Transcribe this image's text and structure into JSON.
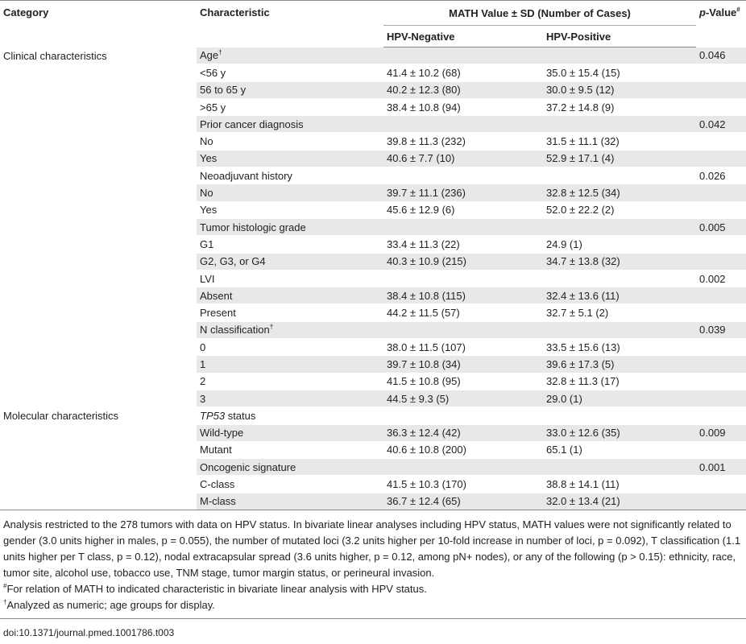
{
  "header": {
    "category": "Category",
    "characteristic": "Characteristic",
    "math": "MATH Value ± SD (Number of Cases)",
    "hpv_neg": "HPV-Negative",
    "hpv_pos": "HPV-Positive",
    "pvalue_p": "p",
    "pvalue_rest": "-Value",
    "pvalue_mark": "#"
  },
  "rows": [
    {
      "category": "Clinical characteristics",
      "characteristic": "Age",
      "mark": "†",
      "neg": "",
      "pos": "",
      "p": "0.046"
    },
    {
      "category": "",
      "characteristic": "<56 y",
      "mark": "",
      "neg": "41.4 ± 10.2 (68)",
      "pos": "35.0 ± 15.4 (15)",
      "p": ""
    },
    {
      "category": "",
      "characteristic": "56 to 65 y",
      "mark": "",
      "neg": "40.2 ± 12.3 (80)",
      "pos": "30.0 ± 9.5 (12)",
      "p": ""
    },
    {
      "category": "",
      "characteristic": ">65 y",
      "mark": "",
      "neg": "38.4 ± 10.8 (94)",
      "pos": "37.2 ± 14.8 (9)",
      "p": ""
    },
    {
      "category": "",
      "characteristic": "Prior cancer diagnosis",
      "mark": "",
      "neg": "",
      "pos": "",
      "p": "0.042"
    },
    {
      "category": "",
      "characteristic": "No",
      "mark": "",
      "neg": "39.8 ± 11.3 (232)",
      "pos": "31.5 ± 11.1 (32)",
      "p": ""
    },
    {
      "category": "",
      "characteristic": "Yes",
      "mark": "",
      "neg": "40.6 ± 7.7 (10)",
      "pos": "52.9 ± 17.1 (4)",
      "p": ""
    },
    {
      "category": "",
      "characteristic": "Neoadjuvant history",
      "mark": "",
      "neg": "",
      "pos": "",
      "p": "0.026"
    },
    {
      "category": "",
      "characteristic": "No",
      "mark": "",
      "neg": "39.7 ± 11.1 (236)",
      "pos": "32.8 ± 12.5 (34)",
      "p": ""
    },
    {
      "category": "",
      "characteristic": "Yes",
      "mark": "",
      "neg": "45.6 ± 12.9 (6)",
      "pos": "52.0 ± 22.2 (2)",
      "p": ""
    },
    {
      "category": "",
      "characteristic": "Tumor histologic grade",
      "mark": "",
      "neg": "",
      "pos": "",
      "p": "0.005"
    },
    {
      "category": "",
      "characteristic": "G1",
      "mark": "",
      "neg": "33.4 ± 11.3 (22)",
      "pos": "24.9 (1)",
      "p": ""
    },
    {
      "category": "",
      "characteristic": "G2, G3, or G4",
      "mark": "",
      "neg": "40.3 ± 10.9 (215)",
      "pos": "34.7 ± 13.8 (32)",
      "p": ""
    },
    {
      "category": "",
      "characteristic": "LVI",
      "mark": "",
      "neg": "",
      "pos": "",
      "p": "0.002"
    },
    {
      "category": "",
      "characteristic": "Absent",
      "mark": "",
      "neg": "38.4 ± 10.8 (115)",
      "pos": "32.4 ± 13.6 (11)",
      "p": ""
    },
    {
      "category": "",
      "characteristic": "Present",
      "mark": "",
      "neg": "44.2 ± 11.5 (57)",
      "pos": "32.7 ± 5.1 (2)",
      "p": ""
    },
    {
      "category": "",
      "characteristic": "N classification",
      "mark": "†",
      "neg": "",
      "pos": "",
      "p": "0.039"
    },
    {
      "category": "",
      "characteristic": "0",
      "mark": "",
      "neg": "38.0 ± 11.5 (107)",
      "pos": "33.5 ± 15.6 (13)",
      "p": ""
    },
    {
      "category": "",
      "characteristic": "1",
      "mark": "",
      "neg": "39.7 ± 10.8 (34)",
      "pos": "39.6 ± 17.3 (5)",
      "p": ""
    },
    {
      "category": "",
      "characteristic": "2",
      "mark": "",
      "neg": "41.5 ± 10.8 (95)",
      "pos": "32.8 ± 11.3 (17)",
      "p": ""
    },
    {
      "category": "",
      "characteristic": "3",
      "mark": "",
      "neg": "44.5 ± 9.3 (5)",
      "pos": "29.0 (1)",
      "p": ""
    },
    {
      "category": "Molecular characteristics",
      "characteristic": "TP53",
      "char_suffix": " status",
      "mark": "",
      "neg": "",
      "pos": "",
      "p": ""
    },
    {
      "category": "",
      "characteristic": "Wild-type",
      "mark": "",
      "neg": "36.3 ± 12.4 (42)",
      "pos": "33.0 ± 12.6 (35)",
      "p": "0.009"
    },
    {
      "category": "",
      "characteristic": "Mutant",
      "mark": "",
      "neg": "40.6 ± 10.8 (200)",
      "pos": "65.1 (1)",
      "p": ""
    },
    {
      "category": "",
      "characteristic": "Oncogenic signature",
      "mark": "",
      "neg": "",
      "pos": "",
      "p": "0.001"
    },
    {
      "category": "",
      "characteristic": "C-class",
      "mark": "",
      "neg": "41.5 ± 10.3 (170)",
      "pos": "38.8 ± 14.1 (11)",
      "p": ""
    },
    {
      "category": "",
      "characteristic": "M-class",
      "mark": "",
      "neg": "36.7 ± 12.4 (65)",
      "pos": "32.0 ± 13.4 (21)",
      "p": ""
    }
  ],
  "notes": {
    "main": "Analysis restricted to the 278 tumors with data on HPV status. In bivariate linear analyses including HPV status, MATH values were not significantly related to gender (3.0 units higher in males, p = 0.055), the number of mutated loci (3.2 units higher per 10-fold increase in number of loci, p = 0.092), T classification (1.1 units higher per T class, p = 0.12), nodal extracapsular spread (3.6 units higher, p = 0.12, among pN+ nodes), or any of the following (p > 0.15): ethnicity, race, tumor site, alcohol use, tobacco use, TNM stage, tumor margin status, or perineural invasion.",
    "hash_mark": "#",
    "hash_text": "For relation of MATH to indicated characteristic in bivariate linear analysis with HPV status.",
    "dagger_mark": "†",
    "dagger_text": "Analyzed as numeric; age groups for display."
  },
  "doi": "doi:10.1371/journal.pmed.1001786.t003"
}
